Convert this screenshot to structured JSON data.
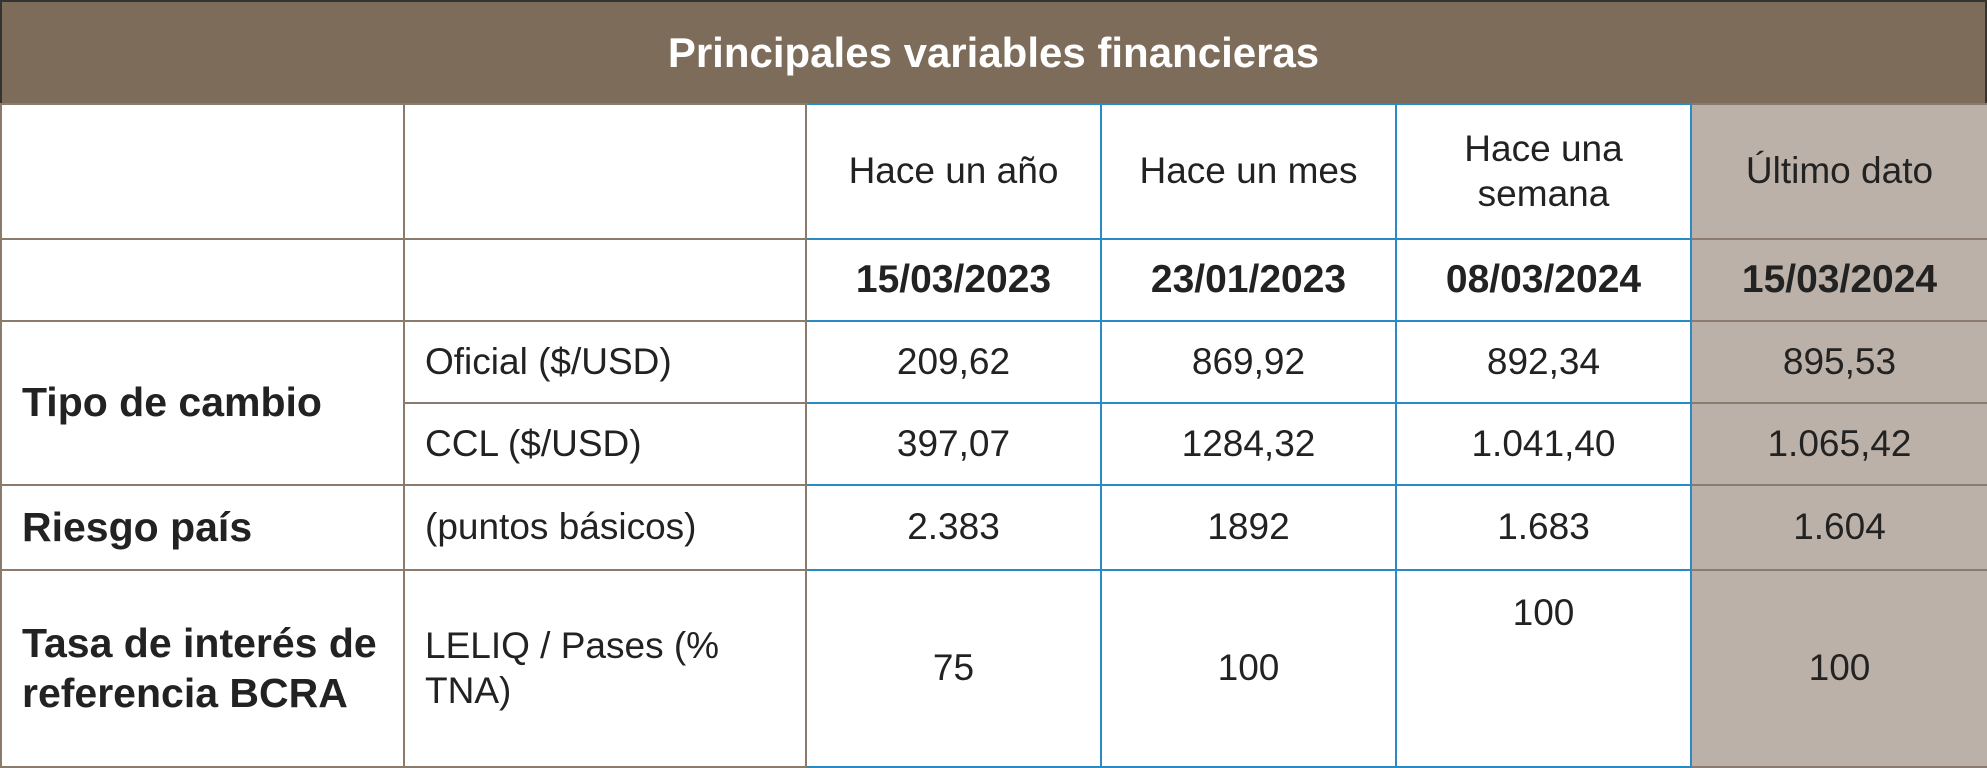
{
  "header": {
    "title": "Principales variables financieras"
  },
  "table": {
    "column_headers": [
      "Hace un año",
      "Hace un mes",
      "Hace una semana",
      "Último dato"
    ],
    "dates": [
      "15/03/2023",
      "23/01/2023",
      "08/03/2024",
      "15/03/2024"
    ],
    "groups": [
      {
        "label": "Tipo de cambio",
        "rows": [
          {
            "label": "Oficial ($/USD)",
            "values": [
              "209,62",
              "869,92",
              "892,34",
              "895,53"
            ]
          },
          {
            "label": "CCL ($/USD)",
            "values": [
              "397,07",
              "1284,32",
              "1.041,40",
              "1.065,42"
            ]
          }
        ]
      },
      {
        "label": "Riesgo país",
        "rows": [
          {
            "label": "(puntos básicos)",
            "values": [
              "2.383",
              "1892",
              "1.683",
              "1.604"
            ]
          }
        ]
      },
      {
        "label": "Tasa de interés de referencia BCRA",
        "rows": [
          {
            "label": "LELIQ / Pases (% TNA)",
            "values": [
              "75",
              "100",
              "100",
              "100"
            ]
          }
        ]
      }
    ]
  }
}
